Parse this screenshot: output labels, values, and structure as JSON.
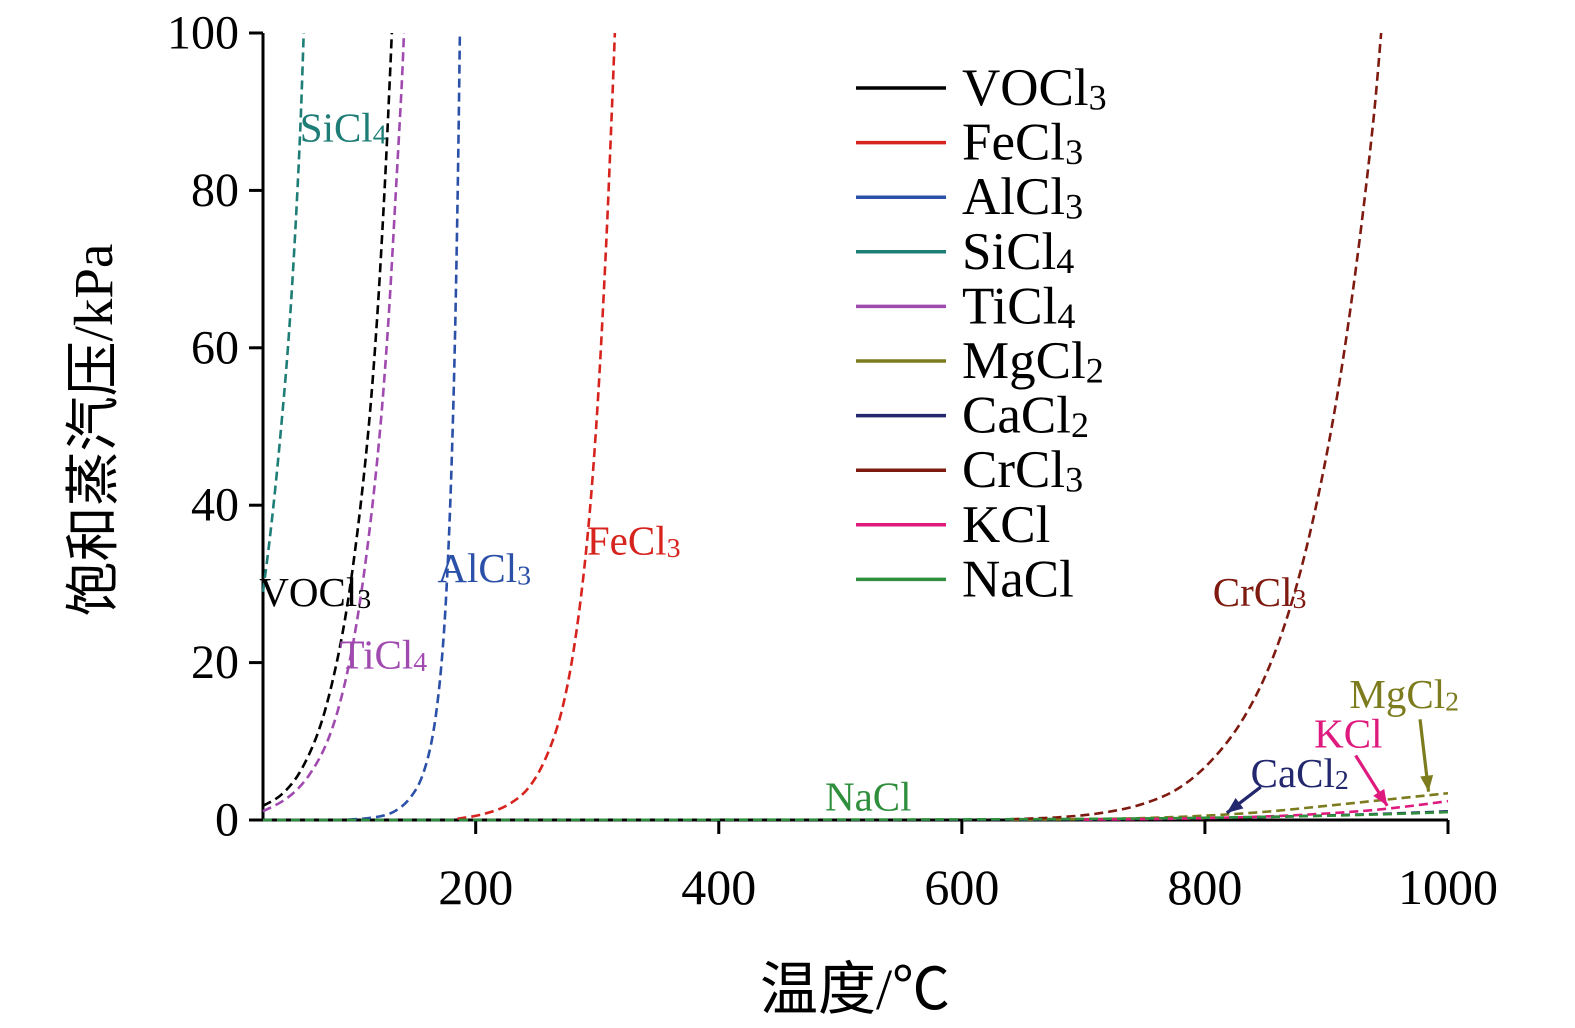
{
  "chart_data": {
    "type": "line",
    "title": "",
    "xlabel": "温度/℃",
    "ylabel": "饱和蒸汽压/kPa",
    "xlim": [
      25,
      1000
    ],
    "ylim": [
      0,
      100
    ],
    "x_ticks": [
      200,
      400,
      600,
      800,
      1000
    ],
    "y_ticks": [
      0,
      20,
      40,
      60,
      80,
      100
    ],
    "grid": false,
    "legend_position": "upper-center",
    "axis_color": "#000000",
    "series": [
      {
        "name": "VOCl3",
        "color": "#000000",
        "points": [
          [
            25,
            1.8
          ],
          [
            40,
            3.2
          ],
          [
            55,
            6
          ],
          [
            70,
            11
          ],
          [
            82,
            17.5
          ],
          [
            93,
            26
          ],
          [
            103,
            37
          ],
          [
            112,
            50
          ],
          [
            119,
            64
          ],
          [
            125,
            80
          ],
          [
            129,
            93
          ],
          [
            131,
            100
          ]
        ]
      },
      {
        "name": "FeCl3",
        "color": "#d7231d",
        "points": [
          [
            185,
            0.15
          ],
          [
            205,
            0.7
          ],
          [
            225,
            1.8
          ],
          [
            243,
            4
          ],
          [
            258,
            8
          ],
          [
            271,
            14
          ],
          [
            282,
            23
          ],
          [
            292,
            36
          ],
          [
            300,
            52
          ],
          [
            307,
            72
          ],
          [
            312,
            90
          ],
          [
            314.5,
            100
          ]
        ]
      },
      {
        "name": "AlCl3",
        "color": "#2b50a8",
        "points": [
          [
            95,
            0.05
          ],
          [
            115,
            0.3
          ],
          [
            132,
            1
          ],
          [
            146,
            2.8
          ],
          [
            157,
            6
          ],
          [
            166,
            12
          ],
          [
            173,
            22
          ],
          [
            178,
            36
          ],
          [
            182,
            55
          ],
          [
            185,
            78
          ],
          [
            187,
            100
          ]
        ]
      },
      {
        "name": "SiCl4",
        "color": "#1e7d76",
        "points": [
          [
            25,
            29
          ],
          [
            30,
            35
          ],
          [
            35,
            42
          ],
          [
            40,
            50
          ],
          [
            45,
            59
          ],
          [
            49,
            68
          ],
          [
            53,
            79
          ],
          [
            56,
            89
          ],
          [
            58.5,
            100
          ]
        ]
      },
      {
        "name": "TiCl4",
        "color": "#a04ab0",
        "points": [
          [
            25,
            1.1
          ],
          [
            45,
            2.8
          ],
          [
            62,
            5.5
          ],
          [
            78,
            10
          ],
          [
            91,
            16.5
          ],
          [
            102,
            25
          ],
          [
            112,
            36
          ],
          [
            121,
            49
          ],
          [
            128,
            63
          ],
          [
            134,
            79
          ],
          [
            139,
            93
          ],
          [
            141,
            100
          ]
        ]
      },
      {
        "name": "MgCl2",
        "color": "#7c7c1e",
        "points": [
          [
            640,
            0.03
          ],
          [
            700,
            0.1
          ],
          [
            750,
            0.25
          ],
          [
            800,
            0.55
          ],
          [
            850,
            1.05
          ],
          [
            900,
            1.8
          ],
          [
            950,
            2.6
          ],
          [
            1000,
            3.4
          ]
        ]
      },
      {
        "name": "CaCl2",
        "color": "#23286e",
        "points": [
          [
            25,
            0.01
          ],
          [
            400,
            0.02
          ],
          [
            640,
            0.05
          ],
          [
            750,
            0.15
          ],
          [
            820,
            0.3
          ],
          [
            880,
            0.5
          ],
          [
            940,
            0.75
          ],
          [
            1000,
            1.1
          ]
        ]
      },
      {
        "name": "CrCl3",
        "color": "#7e1a10",
        "points": [
          [
            640,
            0.1
          ],
          [
            680,
            0.35
          ],
          [
            715,
            0.9
          ],
          [
            748,
            2
          ],
          [
            778,
            4
          ],
          [
            805,
            7.5
          ],
          [
            830,
            12.5
          ],
          [
            853,
            19.5
          ],
          [
            874,
            29
          ],
          [
            893,
            41
          ],
          [
            910,
            55
          ],
          [
            925,
            71
          ],
          [
            938,
            88
          ],
          [
            945,
            100
          ]
        ]
      },
      {
        "name": "KCl",
        "color": "#df1a7e",
        "points": [
          [
            700,
            0.05
          ],
          [
            770,
            0.15
          ],
          [
            830,
            0.35
          ],
          [
            880,
            0.65
          ],
          [
            930,
            1.15
          ],
          [
            965,
            1.7
          ],
          [
            1000,
            2.4
          ]
        ]
      },
      {
        "name": "NaCl",
        "color": "#2f8f3c",
        "points": [
          [
            25,
            0.01
          ],
          [
            300,
            0.02
          ],
          [
            600,
            0.08
          ],
          [
            750,
            0.2
          ],
          [
            850,
            0.4
          ],
          [
            930,
            0.65
          ],
          [
            1000,
            1.0
          ]
        ]
      }
    ],
    "annotations": [
      {
        "text": "SiCl4",
        "color": "#1e7d76",
        "x": 91,
        "y": 88
      },
      {
        "text": "VOCl3",
        "color": "#000000",
        "x": 68,
        "y": 29
      },
      {
        "text": "TiCl4",
        "color": "#a04ab0",
        "x": 124,
        "y": 21
      },
      {
        "text": "AlCl3",
        "color": "#2b50a8",
        "x": 207,
        "y": 32
      },
      {
        "text": "FeCl3",
        "color": "#d7231d",
        "x": 330,
        "y": 35.5
      },
      {
        "text": "NaCl",
        "color": "#2f8f3c",
        "x": 523,
        "y": 3
      },
      {
        "text": "CrCl3",
        "color": "#7e1a10",
        "x": 845,
        "y": 29
      },
      {
        "text": "CaCl2",
        "color": "#23286e",
        "x": 878,
        "y": 6,
        "arrow": {
          "from": [
            846,
            4.2
          ],
          "to": [
            818,
            0.9
          ]
        }
      },
      {
        "text": "KCl",
        "color": "#df1a7e",
        "x": 918,
        "y": 11,
        "arrow": {
          "from": [
            924,
            8.2
          ],
          "to": [
            950,
            1.8
          ]
        }
      },
      {
        "text": "MgCl2",
        "color": "#7c7c1e",
        "x": 964,
        "y": 16,
        "arrow": {
          "from": [
            977,
            12.8
          ],
          "to": [
            984,
            3.6
          ]
        }
      }
    ]
  }
}
